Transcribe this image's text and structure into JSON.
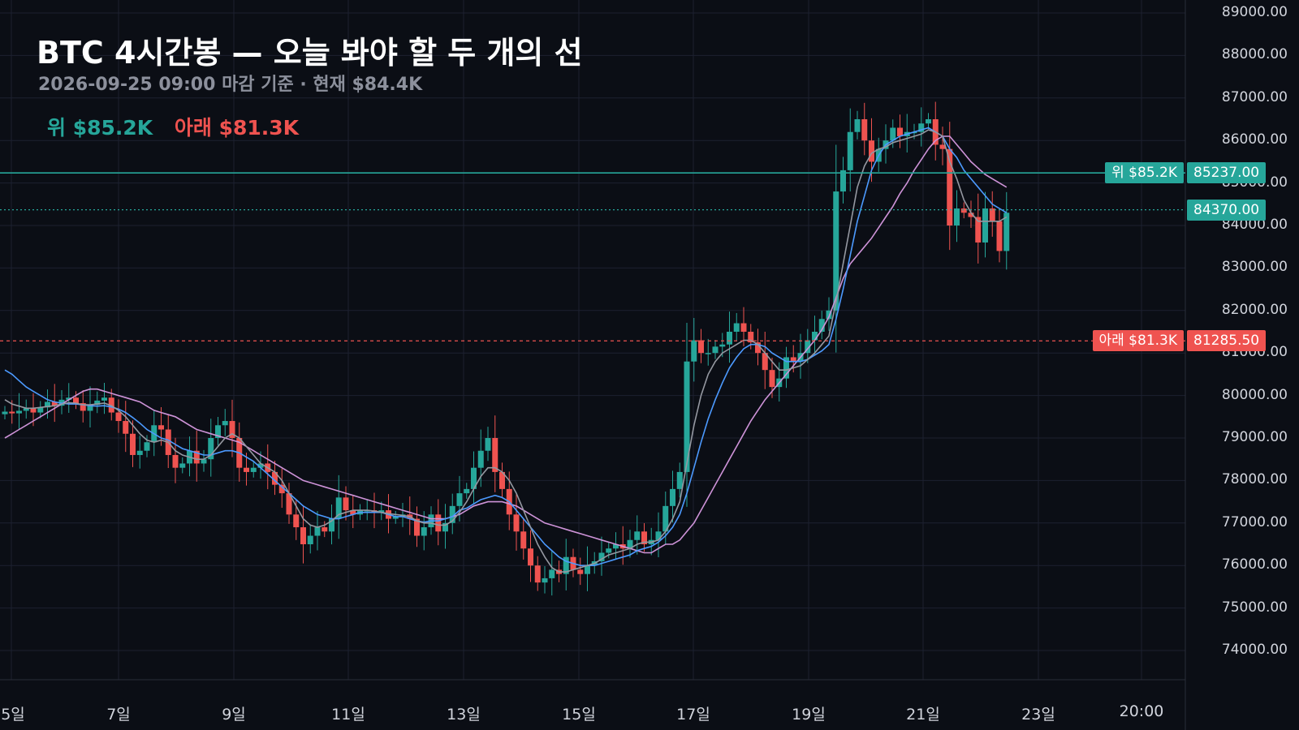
{
  "title": "BTC 4시간봉 — 오늘 봐야 할 두 개의 선",
  "subtitle": "2026-09-25 09:00 마감 기준 · 현재 $84.4K",
  "legend": {
    "upper": "위 $85.2K",
    "lower": "아래 $81.3K"
  },
  "colors": {
    "background": "#0b0e15",
    "grid": "#1c2030",
    "up_candle": "#26a69a",
    "down_candle": "#ef5350",
    "upper_line": "#26a69a",
    "lower_line": "#ef5350",
    "ma_fast": "#9598a1",
    "ma_mid": "#4c9aff",
    "ma_slow": "#ce93d8"
  },
  "chart_data": {
    "type": "candlestick",
    "title": "BTC 4시간봉 — 오늘 봐야 할 두 개의 선",
    "ylim": [
      73600,
      89200
    ],
    "y_ticks": [
      "89000.00",
      "88000.00",
      "87000.00",
      "86000.00",
      "85000.00",
      "84000.00",
      "83000.00",
      "82000.00",
      "81000.00",
      "80000.00",
      "79000.00",
      "78000.00",
      "77000.00",
      "76000.00",
      "75000.00",
      "74000.00"
    ],
    "x_ticks": [
      "5일",
      "7일",
      "9일",
      "11일",
      "13일",
      "15일",
      "17일",
      "19일",
      "21일",
      "23일",
      "20:00"
    ],
    "price_lines": [
      {
        "name": "upper",
        "value": 85237.0,
        "value_label": "85237.00",
        "tag": "위 $85.2K",
        "style": "solid"
      },
      {
        "name": "lower",
        "value": 81285.5,
        "value_label": "81285.50",
        "tag": "아래 $81.3K",
        "style": "dashed"
      },
      {
        "name": "current",
        "value": 84370.0,
        "value_label": "84370.00",
        "style": "dotted"
      }
    ],
    "close": [
      79620,
      79580,
      79640,
      79700,
      79600,
      79720,
      79850,
      79760,
      79900,
      79950,
      79820,
      79640,
      79780,
      79880,
      79950,
      79600,
      79400,
      79100,
      78600,
      78700,
      78900,
      79300,
      79200,
      78600,
      78300,
      78400,
      78700,
      78400,
      78500,
      79000,
      79300,
      79400,
      79000,
      78300,
      78200,
      78300,
      78400,
      78200,
      77900,
      77700,
      77200,
      76900,
      76500,
      76700,
      76900,
      76800,
      77100,
      77600,
      77300,
      77200,
      77300,
      77300,
      77250,
      77300,
      77100,
      77150,
      77200,
      77100,
      76700,
      76900,
      77200,
      76800,
      77000,
      77400,
      77700,
      77800,
      78300,
      78700,
      79000,
      78200,
      77800,
      77200,
      76800,
      76400,
      76000,
      75600,
      75700,
      75900,
      75800,
      76200,
      75900,
      75800,
      76000,
      76100,
      76300,
      76400,
      76500,
      76400,
      76600,
      76800,
      76500,
      76600,
      76800,
      77400,
      77800,
      78200,
      80800,
      81300,
      81000,
      81000,
      81150,
      81200,
      81500,
      81700,
      81500,
      81250,
      81000,
      80600,
      80200,
      80400,
      80900,
      80800,
      81000,
      81300,
      81500,
      81800,
      82000,
      84800,
      85300,
      86200,
      86500,
      86000,
      85500,
      85800,
      86000,
      86300,
      86100,
      86200,
      86200,
      86400,
      86500,
      85900,
      85800,
      84000,
      84400,
      84300,
      84200,
      83600,
      84400,
      84100,
      83400,
      84300
    ],
    "ma_fast": [
      79900,
      79800,
      79750,
      79700,
      79700,
      79720,
      79740,
      79760,
      79800,
      79830,
      79820,
      79780,
      79780,
      79800,
      79820,
      79760,
      79650,
      79500,
      79300,
      79100,
      78950,
      78900,
      78950,
      78900,
      78700,
      78600,
      78550,
      78500,
      78500,
      78600,
      78800,
      79000,
      79100,
      79000,
      78800,
      78600,
      78400,
      78300,
      78200,
      78000,
      77700,
      77400,
      77100,
      76950,
      76900,
      76950,
      77050,
      77200,
      77250,
      77300,
      77300,
      77300,
      77280,
      77250,
      77220,
      77200,
      77180,
      77150,
      77050,
      77000,
      77000,
      76950,
      76950,
      77050,
      77250,
      77500,
      77800,
      78100,
      78300,
      78300,
      78200,
      78000,
      77700,
      77300,
      76900,
      76500,
      76200,
      75950,
      75850,
      75850,
      75900,
      75950,
      76000,
      76050,
      76150,
      76250,
      76300,
      76350,
      76400,
      76500,
      76550,
      76550,
      76600,
      76800,
      77100,
      77500,
      78400,
      79300,
      80000,
      80500,
      80800,
      81000,
      81100,
      81200,
      81300,
      81300,
      81200,
      81000,
      80800,
      80600,
      80600,
      80650,
      80700,
      80850,
      81000,
      81200,
      81400,
      82200,
      83100,
      84000,
      84900,
      85400,
      85700,
      85800,
      85850,
      85950,
      86000,
      86050,
      86100,
      86150,
      86250,
      86200,
      86100,
      85500,
      85100,
      84600,
      84300,
      84100,
      84100,
      84100,
      84100,
      84200
    ],
    "ma_mid": [
      80600,
      80500,
      80350,
      80200,
      80100,
      80000,
      79900,
      79850,
      79820,
      79800,
      79800,
      79780,
      79760,
      79750,
      79760,
      79730,
      79680,
      79600,
      79480,
      79350,
      79200,
      79100,
      79000,
      78950,
      78850,
      78750,
      78700,
      78650,
      78600,
      78600,
      78650,
      78700,
      78700,
      78650,
      78550,
      78450,
      78300,
      78150,
      78000,
      77850,
      77700,
      77550,
      77400,
      77300,
      77200,
      77150,
      77100,
      77100,
      77150,
      77200,
      77250,
      77250,
      77250,
      77250,
      77200,
      77150,
      77150,
      77100,
      77050,
      77020,
      77050,
      77050,
      77100,
      77150,
      77300,
      77350,
      77450,
      77550,
      77600,
      77650,
      77600,
      77500,
      77300,
      77100,
      76900,
      76700,
      76500,
      76350,
      76200,
      76100,
      76050,
      76000,
      76000,
      76000,
      76050,
      76100,
      76150,
      76200,
      76250,
      76350,
      76400,
      76450,
      76550,
      76700,
      76900,
      77200,
      77700,
      78300,
      78900,
      79450,
      79900,
      80300,
      80650,
      80900,
      81100,
      81200,
      81200,
      81150,
      81000,
      80900,
      80800,
      80800,
      80800,
      80850,
      80950,
      81050,
      81200,
      81800,
      82500,
      83300,
      84100,
      84700,
      85300,
      85650,
      85900,
      86000,
      86100,
      86150,
      86200,
      86250,
      86300,
      86200,
      86100,
      85800,
      85600,
      85300,
      85100,
      84900,
      84700,
      84500,
      84400,
      84300
    ],
    "ma_slow": [
      79000,
      79100,
      79200,
      79300,
      79400,
      79500,
      79600,
      79700,
      79800,
      79900,
      80000,
      80100,
      80150,
      80150,
      80100,
      80050,
      80000,
      79950,
      79900,
      79850,
      79750,
      79650,
      79600,
      79550,
      79500,
      79400,
      79300,
      79200,
      79150,
      79100,
      79050,
      79000,
      78950,
      78900,
      78800,
      78700,
      78600,
      78500,
      78400,
      78300,
      78200,
      78100,
      78000,
      77950,
      77900,
      77850,
      77800,
      77750,
      77700,
      77650,
      77600,
      77550,
      77500,
      77450,
      77400,
      77350,
      77300,
      77250,
      77200,
      77150,
      77100,
      77100,
      77100,
      77150,
      77200,
      77300,
      77400,
      77450,
      77500,
      77500,
      77500,
      77450,
      77400,
      77300,
      77200,
      77100,
      77000,
      76950,
      76900,
      76850,
      76800,
      76750,
      76700,
      76650,
      76600,
      76550,
      76500,
      76450,
      76400,
      76350,
      76300,
      76300,
      76400,
      76500,
      76500,
      76600,
      76800,
      77000,
      77300,
      77600,
      77900,
      78200,
      78500,
      78800,
      79100,
      79400,
      79650,
      79900,
      80100,
      80300,
      80500,
      80700,
      80900,
      81100,
      81300,
      81550,
      81850,
      82300,
      82750,
      83100,
      83300,
      83500,
      83700,
      83950,
      84200,
      84450,
      84750,
      85000,
      85300,
      85550,
      85800,
      86000,
      86100,
      86100,
      85900,
      85700,
      85500,
      85350,
      85200,
      85100,
      85000,
      84900
    ]
  }
}
